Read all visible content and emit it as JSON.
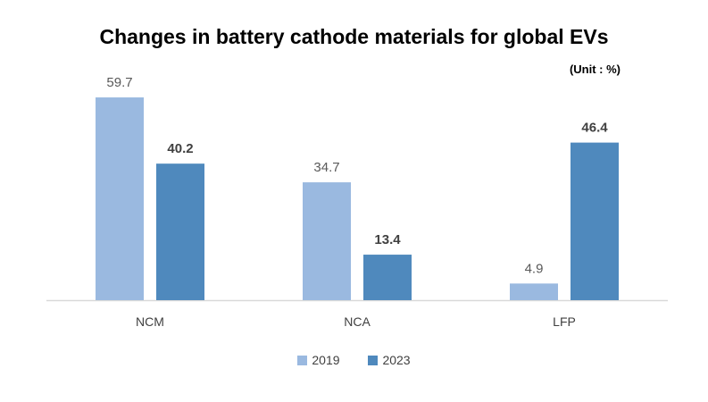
{
  "chart_data": {
    "type": "bar",
    "title": "Changes in battery cathode materials for global EVs",
    "unit_label": "(Unit : %)",
    "categories": [
      "NCM",
      "NCA",
      "LFP"
    ],
    "series": [
      {
        "name": "2019",
        "values": [
          59.7,
          34.7,
          4.9
        ],
        "labels": [
          "59.7",
          "34.7",
          "4.9"
        ],
        "color": "#9ab9e0",
        "label_bold": false
      },
      {
        "name": "2023",
        "values": [
          40.2,
          13.4,
          46.4
        ],
        "labels": [
          "40.2",
          "13.4",
          "46.4"
        ],
        "color": "#4f89bd",
        "label_bold": true
      }
    ],
    "ylim": [
      0,
      60
    ],
    "grid": false,
    "legend_position": "bottom"
  }
}
